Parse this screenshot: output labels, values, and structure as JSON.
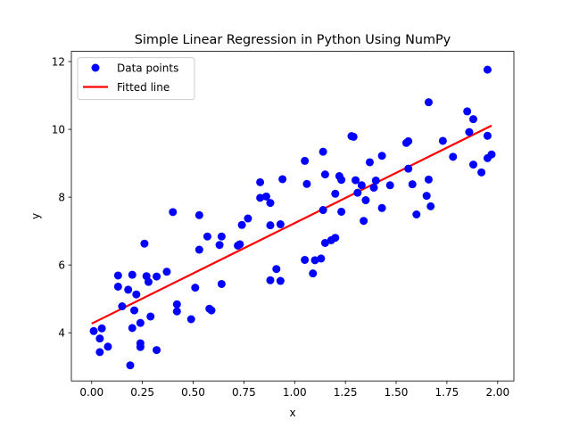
{
  "chart_data": {
    "type": "scatter",
    "title": "Simple Linear Regression in Python Using NumPy",
    "xlabel": "x",
    "ylabel": "y",
    "xlim": [
      -0.1,
      2.08
    ],
    "ylim": [
      2.58,
      12.3
    ],
    "x_ticks": [
      0.0,
      0.25,
      0.5,
      0.75,
      1.0,
      1.25,
      1.5,
      1.75,
      2.0
    ],
    "x_tick_labels": [
      "0.00",
      "0.25",
      "0.50",
      "0.75",
      "1.00",
      "1.25",
      "1.50",
      "1.75",
      "2.00"
    ],
    "y_ticks": [
      4,
      6,
      8,
      10,
      12
    ],
    "y_tick_labels": [
      "4",
      "6",
      "8",
      "10",
      "12"
    ],
    "grid": false,
    "legend_position": "top-left",
    "colors": {
      "points": "#0000ff",
      "line": "#ff0000",
      "axes": "#000000"
    },
    "series": [
      {
        "name": "Data points",
        "kind": "scatter",
        "points": [
          [
            0.01,
            4.05
          ],
          [
            0.04,
            3.83
          ],
          [
            0.05,
            4.13
          ],
          [
            0.04,
            3.43
          ],
          [
            0.08,
            3.59
          ],
          [
            0.13,
            5.69
          ],
          [
            0.13,
            5.36
          ],
          [
            0.15,
            4.78
          ],
          [
            0.18,
            5.27
          ],
          [
            0.19,
            3.04
          ],
          [
            0.2,
            4.14
          ],
          [
            0.2,
            5.71
          ],
          [
            0.21,
            4.66
          ],
          [
            0.22,
            5.13
          ],
          [
            0.24,
            4.29
          ],
          [
            0.24,
            3.69
          ],
          [
            0.24,
            3.58
          ],
          [
            0.26,
            6.63
          ],
          [
            0.27,
            5.67
          ],
          [
            0.28,
            5.5
          ],
          [
            0.29,
            4.48
          ],
          [
            0.32,
            3.49
          ],
          [
            0.32,
            5.66
          ],
          [
            0.37,
            5.8
          ],
          [
            0.4,
            7.56
          ],
          [
            0.42,
            4.84
          ],
          [
            0.42,
            4.63
          ],
          [
            0.49,
            4.4
          ],
          [
            0.51,
            5.33
          ],
          [
            0.53,
            7.47
          ],
          [
            0.53,
            6.45
          ],
          [
            0.57,
            6.84
          ],
          [
            0.58,
            4.71
          ],
          [
            0.59,
            4.66
          ],
          [
            0.63,
            6.59
          ],
          [
            0.64,
            6.84
          ],
          [
            0.64,
            5.44
          ],
          [
            0.72,
            6.57
          ],
          [
            0.73,
            6.61
          ],
          [
            0.74,
            7.18
          ],
          [
            0.77,
            7.37
          ],
          [
            0.83,
            8.44
          ],
          [
            0.83,
            7.98
          ],
          [
            0.86,
            8.02
          ],
          [
            0.88,
            7.83
          ],
          [
            0.88,
            7.17
          ],
          [
            0.88,
            5.55
          ],
          [
            0.91,
            5.88
          ],
          [
            0.93,
            5.53
          ],
          [
            0.93,
            7.2
          ],
          [
            0.94,
            8.53
          ],
          [
            1.05,
            9.07
          ],
          [
            1.05,
            6.15
          ],
          [
            1.06,
            8.39
          ],
          [
            1.09,
            5.75
          ],
          [
            1.1,
            6.14
          ],
          [
            1.13,
            6.19
          ],
          [
            1.14,
            9.34
          ],
          [
            1.14,
            7.62
          ],
          [
            1.15,
            6.65
          ],
          [
            1.15,
            8.67
          ],
          [
            1.18,
            6.73
          ],
          [
            1.2,
            6.8
          ],
          [
            1.2,
            8.1
          ],
          [
            1.22,
            8.62
          ],
          [
            1.23,
            8.51
          ],
          [
            1.23,
            7.57
          ],
          [
            1.28,
            9.8
          ],
          [
            1.29,
            9.78
          ],
          [
            1.3,
            8.5
          ],
          [
            1.31,
            8.13
          ],
          [
            1.33,
            8.35
          ],
          [
            1.34,
            7.3
          ],
          [
            1.35,
            7.91
          ],
          [
            1.37,
            9.03
          ],
          [
            1.39,
            8.28
          ],
          [
            1.4,
            8.49
          ],
          [
            1.43,
            9.22
          ],
          [
            1.43,
            7.68
          ],
          [
            1.47,
            8.35
          ],
          [
            1.55,
            9.6
          ],
          [
            1.56,
            9.65
          ],
          [
            1.56,
            8.84
          ],
          [
            1.58,
            8.38
          ],
          [
            1.6,
            7.49
          ],
          [
            1.65,
            8.04
          ],
          [
            1.66,
            8.52
          ],
          [
            1.66,
            10.8
          ],
          [
            1.67,
            7.73
          ],
          [
            1.73,
            9.66
          ],
          [
            1.78,
            9.19
          ],
          [
            1.85,
            10.53
          ],
          [
            1.86,
            9.92
          ],
          [
            1.88,
            10.3
          ],
          [
            1.88,
            8.96
          ],
          [
            1.92,
            8.73
          ],
          [
            1.95,
            9.81
          ],
          [
            1.95,
            9.15
          ],
          [
            1.95,
            11.76
          ],
          [
            1.97,
            9.26
          ]
        ]
      },
      {
        "name": "Fitted line",
        "kind": "line",
        "x": [
          0.0,
          1.97
        ],
        "y": [
          4.27,
          10.11
        ]
      }
    ]
  }
}
